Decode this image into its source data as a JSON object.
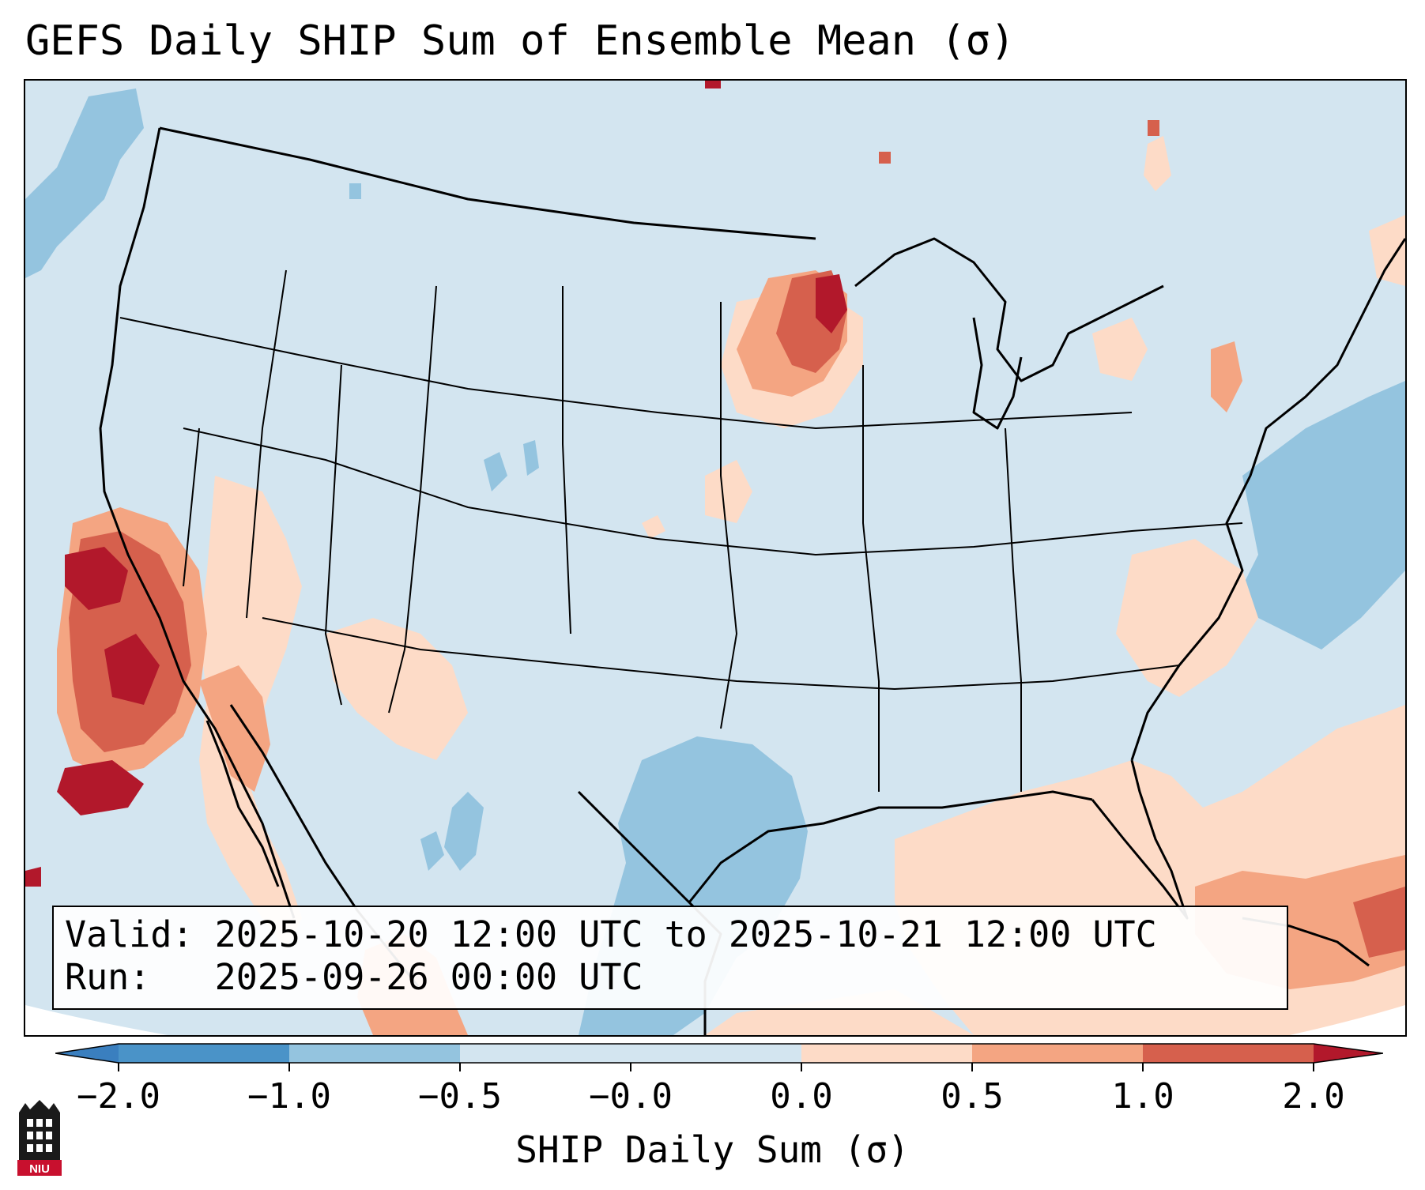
{
  "title": "GEFS Daily SHIP Sum of Ensemble Mean (σ)",
  "info_box": {
    "valid_label": "Valid:",
    "valid_value": "2025-10-20 12:00 UTC to 2025-10-21 12:00 UTC",
    "run_label": "Run:",
    "run_value": "2025-09-26 00:00 UTC"
  },
  "colorbar": {
    "label": "SHIP Daily Sum (σ)",
    "ticks": [
      "−2.0",
      "−1.0",
      "−0.5",
      "−0.0",
      "0.0",
      "0.5",
      "1.0",
      "2.0"
    ],
    "colors": {
      "below_min": "#3a7fbf",
      "b_neg2_neg1": "#4a93c8",
      "b_neg1_neg05": "#94c4df",
      "b_neg05_0": "#d3e5f0",
      "b_0_05": "#fddbc7",
      "b_05_1": "#f4a582",
      "b_1_2": "#d6604d",
      "above_max": "#b2182b"
    }
  },
  "logo": {
    "text": "NIU"
  }
}
